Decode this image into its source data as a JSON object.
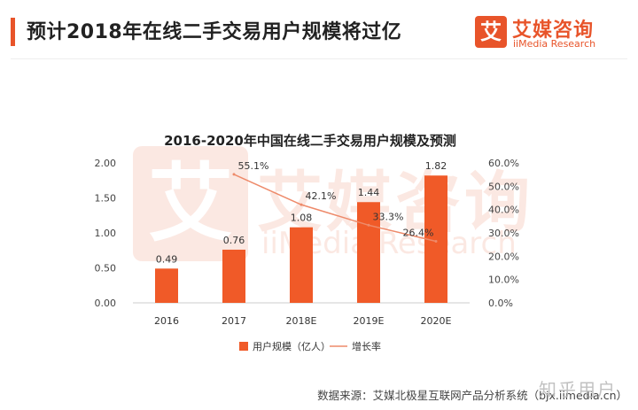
{
  "header": {
    "title": "预计2018年在线二手交易用户规模将过亿",
    "logo_mark": "艾",
    "logo_name": "艾媒咨询",
    "logo_sub": "iiMedia Research"
  },
  "watermark": {
    "mark": "艾",
    "name": "艾媒咨询",
    "sub": "iiMedia Research"
  },
  "source": "数据来源：艾媒北极星互联网产品分析系统（bjx.iimedia.cn）",
  "footer_watermark": "知乎用户",
  "colors": {
    "accent": "#e8542a",
    "bar": "#f05a28",
    "line": "#ee8a6a",
    "text": "#333333"
  },
  "chart_data": {
    "type": "bar",
    "title": "2016-2020年中国在线二手交易用户规模及预测",
    "categories": [
      "2016",
      "2017",
      "2018E",
      "2019E",
      "2020E"
    ],
    "series": [
      {
        "name": "用户规模（亿人）",
        "type": "bar",
        "axis": "left",
        "values": [
          0.49,
          0.76,
          1.08,
          1.44,
          1.82
        ],
        "labels": [
          "0.49",
          "0.76",
          "1.08",
          "1.44",
          "1.82"
        ]
      },
      {
        "name": "增长率",
        "type": "line",
        "axis": "right",
        "values": [
          null,
          55.1,
          42.1,
          33.3,
          26.4
        ],
        "labels": [
          "",
          "55.1%",
          "42.1%",
          "33.3%",
          "26.4%"
        ]
      }
    ],
    "y_left": {
      "min": 0,
      "max": 2.0,
      "ticks": [
        "0.00",
        "0.50",
        "1.00",
        "1.50",
        "2.00"
      ]
    },
    "y_right": {
      "min": 0,
      "max": 60,
      "ticks": [
        "0.0%",
        "10.0%",
        "20.0%",
        "30.0%",
        "40.0%",
        "50.0%",
        "60.0%"
      ]
    },
    "legend": "bottom",
    "grid": false
  }
}
